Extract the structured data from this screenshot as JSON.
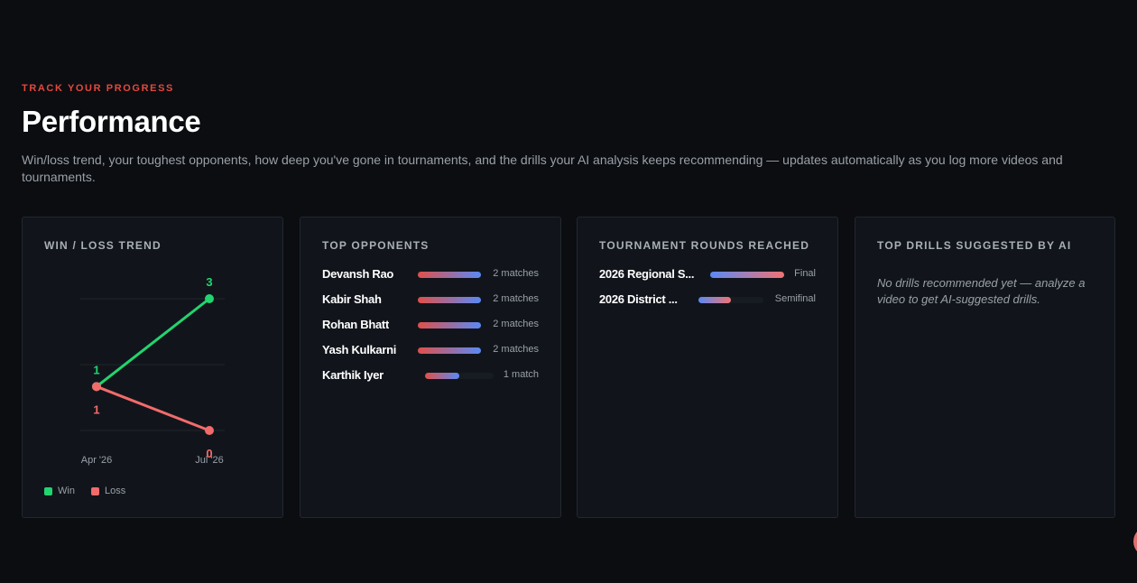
{
  "header": {
    "eyebrow": "TRACK YOUR PROGRESS",
    "title": "Performance",
    "subtitle": "Win/loss trend, your toughest opponents, how deep you've gone in tournaments, and the drills your AI analysis keeps recommending — updates automatically as you log more videos and tournaments."
  },
  "trend_card": {
    "title": "WIN / LOSS TREND",
    "legend": [
      {
        "label": "Win",
        "color": "#22d46f"
      },
      {
        "label": "Loss",
        "color": "#f26b6b"
      }
    ]
  },
  "chart_data": {
    "type": "line",
    "categories": [
      "Apr '26",
      "Jul '26"
    ],
    "series": [
      {
        "name": "Win",
        "values": [
          1,
          3
        ],
        "color": "#22d46f"
      },
      {
        "name": "Loss",
        "values": [
          1,
          0
        ],
        "color": "#f26b6b"
      }
    ],
    "ylim": [
      0,
      3
    ],
    "grid": true,
    "legend_position": "bottom-left"
  },
  "opponents_card": {
    "title": "TOP OPPONENTS",
    "items": [
      {
        "name": "Devansh Rao",
        "count": "2 matches",
        "fraction": 1.0
      },
      {
        "name": "Kabir Shah",
        "count": "2 matches",
        "fraction": 1.0
      },
      {
        "name": "Rohan Bhatt",
        "count": "2 matches",
        "fraction": 1.0
      },
      {
        "name": "Yash Kulkarni",
        "count": "2 matches",
        "fraction": 1.0
      },
      {
        "name": "Karthik Iyer",
        "count": "1 match",
        "fraction": 0.5
      }
    ]
  },
  "rounds_card": {
    "title": "TOURNAMENT ROUNDS REACHED",
    "items": [
      {
        "name": "2026 Regional S...",
        "round": "Final",
        "fraction": 1.0
      },
      {
        "name": "2026 District ...",
        "round": "Semifinal",
        "fraction": 0.5
      }
    ]
  },
  "drills_card": {
    "title": "TOP DRILLS SUGGESTED BY AI",
    "empty": "No drills recommended yet — analyze a video to get AI-suggested drills."
  }
}
